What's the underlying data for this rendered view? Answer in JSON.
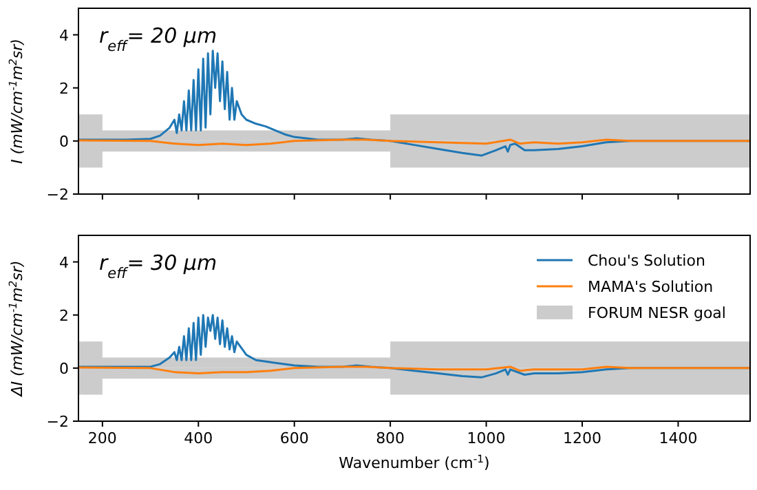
{
  "chart_data": [
    {
      "type": "line",
      "ylabel": "I (mW/cm$^{-1}$m$^{2}$sr)",
      "annotations": [
        "r$_{eff}$= 20 μm"
      ],
      "xlim": [
        150,
        1550
      ],
      "ylim": [
        -2,
        5
      ],
      "xticks": [
        200,
        400,
        600,
        800,
        1000,
        1200,
        1400
      ],
      "yticks": [
        {
          "value": -2,
          "label": "−2"
        },
        0,
        2,
        4
      ],
      "tick_labels": "y",
      "grid": false,
      "series": [
        {
          "color": "#1f77b4",
          "x": [
            150,
            200,
            250,
            300,
            320,
            340,
            350,
            355,
            360,
            365,
            370,
            375,
            380,
            385,
            390,
            395,
            400,
            405,
            410,
            415,
            420,
            425,
            430,
            435,
            440,
            445,
            450,
            455,
            460,
            465,
            470,
            475,
            480,
            490,
            500,
            520,
            540,
            560,
            580,
            600,
            650,
            700,
            730,
            760,
            800,
            850,
            900,
            950,
            990,
            1020,
            1040,
            1045,
            1050,
            1060,
            1080,
            1100,
            1150,
            1200,
            1250,
            1300,
            1400,
            1550
          ],
          "values": [
            0.05,
            0.05,
            0.05,
            0.08,
            0.2,
            0.5,
            0.8,
            0.3,
            1.0,
            0.4,
            1.5,
            0.4,
            1.9,
            0.4,
            2.3,
            0.4,
            2.7,
            0.4,
            3.1,
            0.5,
            3.3,
            1.0,
            3.4,
            2.0,
            3.3,
            1.5,
            3.0,
            1.2,
            2.6,
            0.8,
            2.0,
            0.8,
            1.5,
            1.0,
            0.8,
            0.65,
            0.55,
            0.4,
            0.25,
            0.15,
            0.05,
            0.05,
            0.1,
            0.05,
            0.0,
            -0.15,
            -0.3,
            -0.45,
            -0.55,
            -0.35,
            -0.2,
            -0.4,
            -0.15,
            -0.1,
            -0.35,
            -0.35,
            -0.3,
            -0.2,
            -0.05,
            0.0,
            0.0,
            0.0
          ]
        },
        {
          "color": "#ff7f0e",
          "x": [
            150,
            300,
            350,
            400,
            450,
            500,
            550,
            600,
            700,
            750,
            800,
            900,
            1000,
            1050,
            1070,
            1100,
            1150,
            1200,
            1250,
            1300,
            1550
          ],
          "values": [
            0.02,
            0.0,
            -0.1,
            -0.15,
            -0.1,
            -0.15,
            -0.1,
            0.0,
            0.05,
            0.05,
            0.0,
            -0.05,
            -0.1,
            0.05,
            -0.1,
            -0.05,
            -0.1,
            -0.05,
            0.05,
            0.0,
            0.0
          ]
        },
        {
          "type": "area",
          "color": "#cccccc",
          "x": [
            150,
            200,
            200,
            800,
            800,
            1550
          ],
          "values": [
            1,
            1,
            0.4,
            0.4,
            1,
            1
          ]
        },
        {
          "type": "area",
          "color": "#cccccc",
          "x": [
            150,
            200,
            200,
            800,
            800,
            1550
          ],
          "values": [
            -1,
            -1,
            -0.4,
            -0.4,
            -1,
            -1
          ]
        }
      ]
    },
    {
      "type": "line",
      "ylabel": "ΔI (mW/cm$^{-1}$m$^{2}$sr)",
      "xlabel": "Wavenumber (cm$^{-1}$)",
      "annotations": [
        "r$_{eff}$= 30 μm"
      ],
      "xlim": [
        150,
        1550
      ],
      "ylim": [
        -2,
        5
      ],
      "xticks": [
        200,
        400,
        600,
        800,
        1000,
        1200,
        1400
      ],
      "yticks": [
        {
          "value": -2,
          "label": "−2"
        },
        0,
        2,
        4
      ],
      "legend": "top right",
      "grid": false,
      "series": [
        {
          "name": "Chou's Solution",
          "color": "#1f77b4",
          "x": [
            150,
            200,
            250,
            300,
            320,
            340,
            350,
            355,
            360,
            365,
            370,
            375,
            380,
            385,
            390,
            395,
            400,
            405,
            410,
            415,
            420,
            425,
            430,
            435,
            440,
            445,
            450,
            455,
            460,
            465,
            470,
            475,
            480,
            500,
            520,
            560,
            600,
            650,
            700,
            730,
            760,
            800,
            850,
            900,
            950,
            990,
            1020,
            1040,
            1045,
            1050,
            1080,
            1100,
            1150,
            1200,
            1250,
            1300,
            1550
          ],
          "values": [
            0.05,
            0.05,
            0.05,
            0.05,
            0.15,
            0.4,
            0.6,
            0.3,
            0.8,
            0.3,
            1.2,
            0.3,
            1.5,
            0.3,
            1.7,
            0.3,
            1.9,
            0.5,
            2.0,
            0.8,
            1.9,
            1.4,
            2.0,
            1.1,
            1.9,
            0.9,
            1.8,
            0.8,
            1.5,
            0.7,
            1.2,
            0.6,
            1.0,
            0.5,
            0.3,
            0.2,
            0.1,
            0.05,
            0.05,
            0.1,
            0.05,
            0.0,
            -0.1,
            -0.2,
            -0.3,
            -0.35,
            -0.2,
            -0.05,
            -0.25,
            -0.05,
            -0.25,
            -0.2,
            -0.2,
            -0.15,
            -0.05,
            0.0,
            0.0
          ]
        },
        {
          "name": "MAMA's Solution",
          "color": "#ff7f0e",
          "x": [
            150,
            300,
            350,
            400,
            450,
            500,
            550,
            600,
            700,
            750,
            800,
            900,
            1000,
            1050,
            1070,
            1100,
            1150,
            1200,
            1250,
            1300,
            1550
          ],
          "values": [
            0.02,
            0.0,
            -0.15,
            -0.2,
            -0.15,
            -0.15,
            -0.1,
            0.0,
            0.05,
            0.05,
            0.0,
            -0.05,
            -0.05,
            0.05,
            -0.1,
            -0.05,
            -0.05,
            -0.05,
            0.05,
            0.0,
            0.0
          ]
        },
        {
          "name": "FORUM NESR goal",
          "type": "area",
          "color": "#cccccc",
          "x": [
            150,
            200,
            200,
            800,
            800,
            1550
          ],
          "values": [
            1,
            1,
            0.4,
            0.4,
            1,
            1
          ]
        },
        {
          "type": "area",
          "color": "#cccccc",
          "x": [
            150,
            200,
            200,
            800,
            800,
            1550
          ],
          "values": [
            -1,
            -1,
            -0.4,
            -0.4,
            -1,
            -1
          ]
        }
      ]
    }
  ]
}
